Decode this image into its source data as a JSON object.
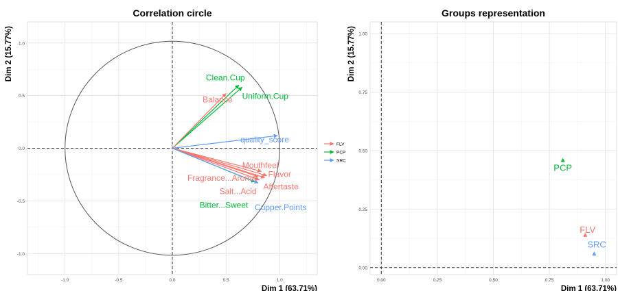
{
  "colors": {
    "FLV": "#f8766d",
    "PCP": "#00ba38",
    "SRC": "#619cff",
    "panel": "#ffffff",
    "grid_major": "#e6e6e6",
    "grid_minor": "#f2f2f2",
    "axis_text": "#4d4d4d"
  },
  "chart_data": [
    {
      "type": "scatter",
      "subtype": "correlation-circle",
      "title": "Correlation circle",
      "xlabel": "Dim 1 (63.71%)",
      "ylabel": "Dim 2 (15.77%)",
      "xlim": [
        -1.35,
        1.35
      ],
      "ylim": [
        -1.2,
        1.2
      ],
      "xticks": [
        -1.0,
        -0.5,
        0.0,
        0.5,
        1.0
      ],
      "yticks": [
        -1.0,
        -0.5,
        0.0,
        0.5,
        1.0
      ],
      "xtick_labels": [
        "-1.0",
        "-0.5",
        "0.0",
        "0.5",
        "1.0"
      ],
      "ytick_labels": [
        "-1.0",
        "-0.5",
        "0.0",
        "0.5",
        "1.0"
      ],
      "grid": true,
      "unit_circle": true,
      "reference_lines": [
        0,
        0
      ],
      "legend": {
        "placement": "right",
        "entries": [
          "FLV",
          "PCP",
          "SRC"
        ]
      },
      "arrows": [
        {
          "label": "Clean.Cup",
          "group": "PCP",
          "x": 0.62,
          "y": 0.6
        },
        {
          "label": "Uniform.Cup",
          "group": "PCP",
          "x": 0.65,
          "y": 0.58
        },
        {
          "label": "Balance",
          "group": "FLV",
          "x": 0.5,
          "y": 0.52
        },
        {
          "label": "quality_score",
          "group": "SRC",
          "x": 0.98,
          "y": 0.12
        },
        {
          "label": "Mouthfeel",
          "group": "FLV",
          "x": 0.83,
          "y": -0.22
        },
        {
          "label": "Flavor",
          "group": "FLV",
          "x": 0.88,
          "y": -0.26
        },
        {
          "label": "Fragrance...Aroma",
          "group": "FLV",
          "x": 0.8,
          "y": -0.27
        },
        {
          "label": "Aftertaste",
          "group": "FLV",
          "x": 0.86,
          "y": -0.28
        },
        {
          "label": "Salt...Acid",
          "group": "FLV",
          "x": 0.81,
          "y": -0.3
        },
        {
          "label": "Bitter...Sweet",
          "group": "PCP",
          "x": 0.77,
          "y": -0.32
        },
        {
          "label": "Cupper.Points",
          "group": "SRC",
          "x": 0.8,
          "y": -0.33
        }
      ]
    },
    {
      "type": "scatter",
      "title": "Groups representation",
      "xlabel": "Dim 1 (63.71%)",
      "ylabel": "Dim 2 (15.77%)",
      "xlim": [
        -0.05,
        1.05
      ],
      "ylim": [
        -0.03,
        1.05
      ],
      "xticks": [
        0.0,
        0.25,
        0.5,
        0.75,
        1.0
      ],
      "yticks": [
        0.0,
        0.25,
        0.5,
        0.75,
        1.0
      ],
      "xtick_labels": [
        "0.00",
        "0.25",
        "0.50",
        "0.75",
        "1.00"
      ],
      "ytick_labels": [
        "0.00",
        "0.25",
        "0.50",
        "0.75",
        "1.00"
      ],
      "grid": true,
      "reference_lines": [
        0,
        0
      ],
      "points": [
        {
          "label": "PCP",
          "group": "PCP",
          "x": 0.81,
          "y": 0.46
        },
        {
          "label": "FLV",
          "group": "FLV",
          "x": 0.91,
          "y": 0.14
        },
        {
          "label": "SRC",
          "group": "SRC",
          "x": 0.95,
          "y": 0.06
        }
      ]
    }
  ]
}
